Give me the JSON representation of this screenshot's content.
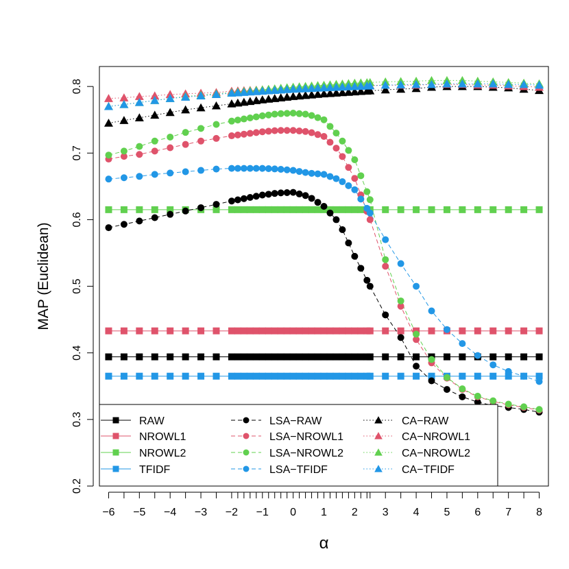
{
  "chart_data": {
    "type": "line",
    "title": "",
    "xlabel": "α",
    "ylabel": "MAP (Euclidean)",
    "xlim": [
      -6.3,
      8.3
    ],
    "ylim": [
      0.2,
      0.83
    ],
    "x_ticks": [
      -6,
      -5,
      -4,
      -3,
      -2,
      -1,
      0,
      1,
      2,
      3,
      4,
      5,
      6,
      7,
      8
    ],
    "y_ticks": [
      0.2,
      0.3,
      0.4,
      0.5,
      0.6,
      0.7,
      0.8
    ],
    "grid": false,
    "legend_position": "bottom-left",
    "colors": {
      "RAW": "#000000",
      "NROWL1": "#df536b",
      "NROWL2": "#61d04f",
      "TFIDF": "#2297e6"
    },
    "x_coarse": [
      -6,
      -5.5,
      -5,
      -4.5,
      -4,
      -3.5,
      -3,
      -2.5,
      -2,
      2.5,
      3,
      3.5,
      4,
      4.5,
      5,
      5.5,
      6,
      6.5,
      7,
      7.5,
      8
    ],
    "x_fine_range": [
      -2,
      2.4,
      0.2
    ],
    "series": [
      {
        "name": "RAW",
        "group": "baseline",
        "marker": "square",
        "line": "solid",
        "constant": 0.394
      },
      {
        "name": "NROWL1",
        "group": "baseline",
        "marker": "square",
        "line": "solid",
        "constant": 0.433
      },
      {
        "name": "NROWL2",
        "group": "baseline",
        "marker": "square",
        "line": "solid",
        "constant": 0.615
      },
      {
        "name": "TFIDF",
        "group": "baseline",
        "marker": "square",
        "line": "solid",
        "constant": 0.365
      },
      {
        "name": "LSA-RAW",
        "group": "LSA",
        "marker": "circle",
        "line": "dashed",
        "points": [
          [
            -6,
            0.588
          ],
          [
            -5.5,
            0.593
          ],
          [
            -5,
            0.598
          ],
          [
            -4.5,
            0.603
          ],
          [
            -4,
            0.608
          ],
          [
            -3.5,
            0.613
          ],
          [
            -3,
            0.618
          ],
          [
            -2.5,
            0.623
          ],
          [
            -2,
            0.628
          ],
          [
            -1,
            0.637
          ],
          [
            -0.5,
            0.64
          ],
          [
            0,
            0.641
          ],
          [
            0.5,
            0.635
          ],
          [
            1,
            0.62
          ],
          [
            1.5,
            0.595
          ],
          [
            1.75,
            0.57
          ],
          [
            2,
            0.545
          ],
          [
            2.5,
            0.5
          ],
          [
            3,
            0.457
          ],
          [
            3.5,
            0.423
          ],
          [
            4,
            0.38
          ],
          [
            4.5,
            0.358
          ],
          [
            5,
            0.345
          ],
          [
            5.5,
            0.334
          ],
          [
            6,
            0.326
          ],
          [
            6.5,
            0.321
          ],
          [
            7,
            0.318
          ],
          [
            7.5,
            0.315
          ],
          [
            8,
            0.311
          ]
        ]
      },
      {
        "name": "LSA-NROWL1",
        "group": "LSA",
        "marker": "circle",
        "line": "dashed",
        "points": [
          [
            -6,
            0.691
          ],
          [
            -5.5,
            0.695
          ],
          [
            -5,
            0.698
          ],
          [
            -4.5,
            0.703
          ],
          [
            -4,
            0.708
          ],
          [
            -3.5,
            0.713
          ],
          [
            -3,
            0.718
          ],
          [
            -2.5,
            0.722
          ],
          [
            -2,
            0.726
          ],
          [
            -1,
            0.732
          ],
          [
            -0.5,
            0.734
          ],
          [
            0,
            0.734
          ],
          [
            0.5,
            0.732
          ],
          [
            1,
            0.725
          ],
          [
            1.5,
            0.703
          ],
          [
            2,
            0.662
          ],
          [
            2.5,
            0.6
          ],
          [
            3,
            0.53
          ],
          [
            3.5,
            0.47
          ],
          [
            4,
            0.42
          ],
          [
            4.5,
            0.385
          ],
          [
            5,
            0.362
          ],
          [
            5.5,
            0.345
          ],
          [
            6,
            0.334
          ],
          [
            6.5,
            0.327
          ],
          [
            7,
            0.322
          ],
          [
            7.5,
            0.318
          ],
          [
            8,
            0.314
          ]
        ]
      },
      {
        "name": "LSA-NROWL2",
        "group": "LSA",
        "marker": "circle",
        "line": "dashed",
        "points": [
          [
            -6,
            0.697
          ],
          [
            -5.5,
            0.703
          ],
          [
            -5,
            0.71
          ],
          [
            -4.5,
            0.718
          ],
          [
            -4,
            0.724
          ],
          [
            -3.5,
            0.731
          ],
          [
            -3,
            0.737
          ],
          [
            -2.5,
            0.743
          ],
          [
            -2,
            0.748
          ],
          [
            -1,
            0.756
          ],
          [
            -0.5,
            0.759
          ],
          [
            0,
            0.76
          ],
          [
            0.5,
            0.758
          ],
          [
            1,
            0.75
          ],
          [
            1.5,
            0.725
          ],
          [
            2,
            0.69
          ],
          [
            2.5,
            0.63
          ],
          [
            3,
            0.54
          ],
          [
            3.5,
            0.478
          ],
          [
            4,
            0.428
          ],
          [
            4.5,
            0.39
          ],
          [
            5,
            0.363
          ],
          [
            5.5,
            0.346
          ],
          [
            6,
            0.335
          ],
          [
            6.5,
            0.328
          ],
          [
            7,
            0.323
          ],
          [
            7.5,
            0.319
          ],
          [
            8,
            0.315
          ]
        ]
      },
      {
        "name": "LSA-TFIDF",
        "group": "LSA",
        "marker": "circle",
        "line": "dashed",
        "points": [
          [
            -6,
            0.661
          ],
          [
            -5.5,
            0.663
          ],
          [
            -5,
            0.665
          ],
          [
            -4.5,
            0.668
          ],
          [
            -4,
            0.67
          ],
          [
            -3.5,
            0.672
          ],
          [
            -3,
            0.674
          ],
          [
            -2.5,
            0.676
          ],
          [
            -2,
            0.677
          ],
          [
            -1,
            0.677
          ],
          [
            -0.5,
            0.676
          ],
          [
            0,
            0.674
          ],
          [
            0.5,
            0.67
          ],
          [
            1,
            0.668
          ],
          [
            1.5,
            0.66
          ],
          [
            2,
            0.645
          ],
          [
            2.5,
            0.61
          ],
          [
            3,
            0.57
          ],
          [
            3.5,
            0.534
          ],
          [
            4,
            0.5
          ],
          [
            4.5,
            0.463
          ],
          [
            5,
            0.435
          ],
          [
            5.5,
            0.414
          ],
          [
            6,
            0.396
          ],
          [
            6.5,
            0.382
          ],
          [
            7,
            0.372
          ],
          [
            7.5,
            0.365
          ],
          [
            8,
            0.357
          ]
        ]
      },
      {
        "name": "CA-RAW",
        "group": "CA",
        "marker": "triangle",
        "line": "dotted",
        "points": [
          [
            -6,
            0.745
          ],
          [
            -5.5,
            0.749
          ],
          [
            -5,
            0.753
          ],
          [
            -4.5,
            0.757
          ],
          [
            -4,
            0.761
          ],
          [
            -3.5,
            0.765
          ],
          [
            -3,
            0.768
          ],
          [
            -2.5,
            0.771
          ],
          [
            -2,
            0.774
          ],
          [
            -1,
            0.78
          ],
          [
            0,
            0.785
          ],
          [
            1,
            0.789
          ],
          [
            2,
            0.792
          ],
          [
            3,
            0.795
          ],
          [
            4,
            0.797
          ],
          [
            4.5,
            0.799
          ],
          [
            5,
            0.8
          ],
          [
            5.5,
            0.8
          ],
          [
            6,
            0.8
          ],
          [
            6.5,
            0.799
          ],
          [
            7,
            0.798
          ],
          [
            7.5,
            0.796
          ],
          [
            8,
            0.794
          ]
        ]
      },
      {
        "name": "CA-NROWL1",
        "group": "CA",
        "marker": "triangle",
        "line": "dotted",
        "points": [
          [
            -6,
            0.782
          ],
          [
            -5.5,
            0.783
          ],
          [
            -5,
            0.785
          ],
          [
            -4.5,
            0.786
          ],
          [
            -4,
            0.788
          ],
          [
            -3.5,
            0.789
          ],
          [
            -3,
            0.79
          ],
          [
            -2.5,
            0.791
          ],
          [
            -2,
            0.793
          ],
          [
            -1,
            0.795
          ],
          [
            0,
            0.797
          ],
          [
            1,
            0.799
          ],
          [
            2,
            0.801
          ],
          [
            3,
            0.802
          ],
          [
            4,
            0.802
          ],
          [
            4.5,
            0.803
          ],
          [
            5,
            0.803
          ],
          [
            5.5,
            0.803
          ],
          [
            6,
            0.802
          ],
          [
            6.5,
            0.802
          ],
          [
            7,
            0.801
          ],
          [
            7.5,
            0.8
          ],
          [
            8,
            0.799
          ]
        ]
      },
      {
        "name": "CA-NROWL2",
        "group": "CA",
        "marker": "triangle",
        "line": "dotted",
        "points": [
          [
            -6,
            0.77
          ],
          [
            -5.5,
            0.773
          ],
          [
            -5,
            0.776
          ],
          [
            -4.5,
            0.779
          ],
          [
            -4,
            0.782
          ],
          [
            -3.5,
            0.785
          ],
          [
            -3,
            0.787
          ],
          [
            -2.5,
            0.789
          ],
          [
            -2,
            0.791
          ],
          [
            -1,
            0.795
          ],
          [
            0,
            0.799
          ],
          [
            1,
            0.802
          ],
          [
            2,
            0.805
          ],
          [
            3,
            0.807
          ],
          [
            4,
            0.808
          ],
          [
            4.5,
            0.809
          ],
          [
            5,
            0.809
          ],
          [
            5.5,
            0.809
          ],
          [
            6,
            0.808
          ],
          [
            6.5,
            0.807
          ],
          [
            7,
            0.806
          ],
          [
            7.5,
            0.805
          ],
          [
            8,
            0.804
          ]
        ]
      },
      {
        "name": "CA-TFIDF",
        "group": "CA",
        "marker": "triangle",
        "line": "dotted",
        "points": [
          [
            -6,
            0.77
          ],
          [
            -5.5,
            0.773
          ],
          [
            -5,
            0.776
          ],
          [
            -4.5,
            0.779
          ],
          [
            -4,
            0.782
          ],
          [
            -3.5,
            0.784
          ],
          [
            -3,
            0.786
          ],
          [
            -2.5,
            0.788
          ],
          [
            -2,
            0.79
          ],
          [
            -1,
            0.793
          ],
          [
            0,
            0.796
          ],
          [
            1,
            0.798
          ],
          [
            2,
            0.8
          ],
          [
            3,
            0.802
          ],
          [
            4,
            0.803
          ],
          [
            4.5,
            0.803
          ],
          [
            5,
            0.804
          ],
          [
            5.5,
            0.804
          ],
          [
            6,
            0.804
          ],
          [
            6.5,
            0.804
          ],
          [
            7,
            0.803
          ],
          [
            7.5,
            0.803
          ],
          [
            8,
            0.802
          ]
        ]
      }
    ],
    "legend": {
      "columns": [
        [
          "RAW",
          "NROWL1",
          "NROWL2",
          "TFIDF"
        ],
        [
          "LSA-RAW",
          "LSA-NROWL1",
          "LSA-NROWL2",
          "LSA-TFIDF"
        ],
        [
          "CA-RAW",
          "CA-NROWL1",
          "CA-NROWL2",
          "CA-TFIDF"
        ]
      ]
    }
  }
}
